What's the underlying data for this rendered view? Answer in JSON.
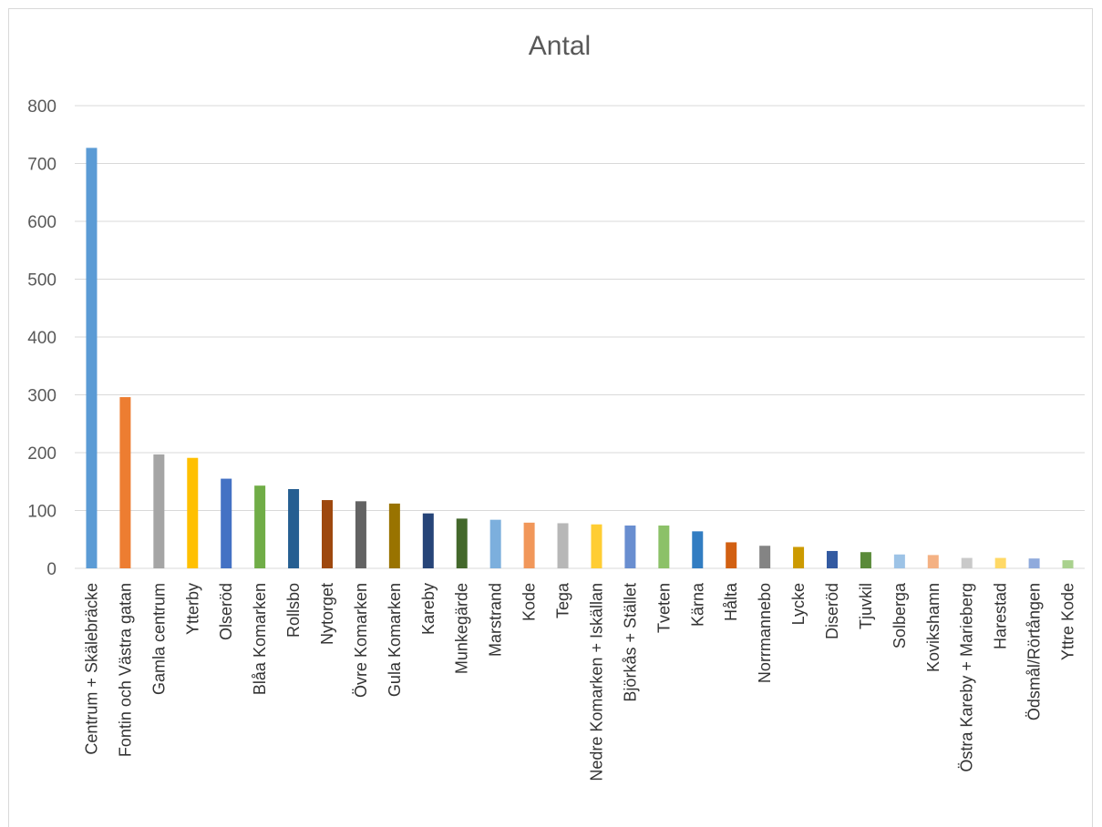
{
  "chart_data": {
    "type": "bar",
    "title": "Antal",
    "xlabel": "",
    "ylabel": "",
    "ylim": [
      0,
      800
    ],
    "yticks": [
      0,
      100,
      200,
      300,
      400,
      500,
      600,
      700,
      800
    ],
    "grid": true,
    "legend": "none",
    "categories": [
      "Centrum + Skälebräcke",
      "Fontin och Västra gatan",
      "Gamla centrum",
      "Ytterby",
      "Olseröd",
      "Blåa Komarken",
      "Rollsbo",
      "Nytorget",
      "Övre Komarken",
      "Gula Komarken",
      "Kareby",
      "Munkegärde",
      "Marstrand",
      "Kode",
      "Tega",
      "Nedre Komarken + Iskällan",
      "Björkås + Stället",
      "Tveten",
      "Kärna",
      "Hålta",
      "Norrmannebo",
      "Lycke",
      "Diseröd",
      "Tjuvkil",
      "Solberga",
      "Kovikshamn",
      "Östra Kareby + Marieberg",
      "Harestad",
      "Ödsmål/Rörtången",
      "Yttre Kode"
    ],
    "values": [
      727,
      296,
      197,
      191,
      155,
      143,
      137,
      118,
      116,
      112,
      95,
      86,
      84,
      79,
      78,
      76,
      74,
      74,
      64,
      45,
      39,
      37,
      30,
      28,
      24,
      23,
      18,
      18,
      17,
      14
    ],
    "colors": [
      "#5B9BD5",
      "#ED7D31",
      "#A5A5A5",
      "#FFC000",
      "#4472C4",
      "#70AD47",
      "#255E91",
      "#9E480E",
      "#636363",
      "#997300",
      "#264478",
      "#43682B",
      "#7CAFDD",
      "#F1975A",
      "#B7B7B7",
      "#FFCD33",
      "#698ED0",
      "#8CC168",
      "#327DC2",
      "#D26012",
      "#848484",
      "#CC9A00",
      "#335AA1",
      "#5A8A39",
      "#9DC3E6",
      "#F4B183",
      "#C9C9C9",
      "#FFD966",
      "#8FAADC",
      "#A9D18E"
    ]
  }
}
